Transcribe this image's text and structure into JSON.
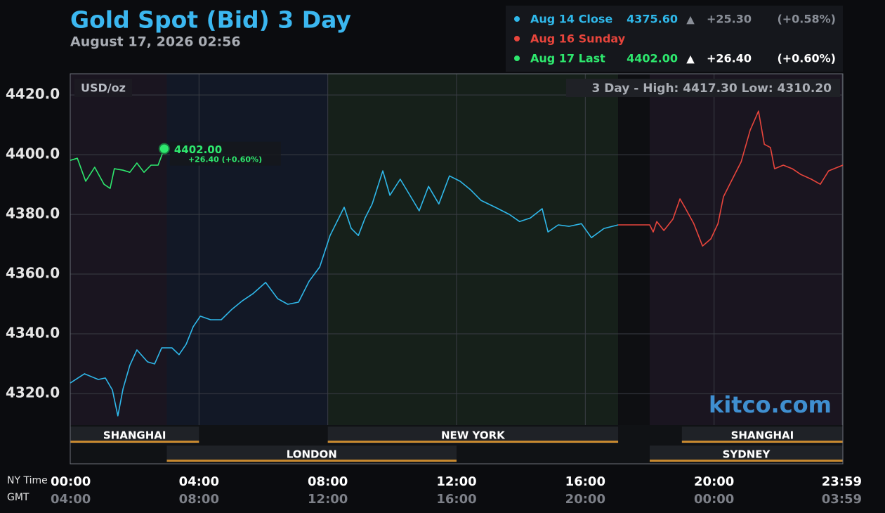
{
  "chart_data": {
    "type": "line",
    "title": "Gold Spot (Bid) 3 Day",
    "subtitle": "August 17, 2026 02:56",
    "unit_label": "USD/oz",
    "range_note": "3 Day - High: 4417.30  Low: 4310.20",
    "watermark": "kitco.com",
    "x_row_label": "NY Time",
    "x2_row_label": "GMT",
    "xlim": [
      0,
      24
    ],
    "xticks": [
      {
        "value": 0,
        "label": "00:00"
      },
      {
        "value": 4,
        "label": "04:00"
      },
      {
        "value": 8,
        "label": "08:00"
      },
      {
        "value": 12,
        "label": "12:00"
      },
      {
        "value": 16,
        "label": "16:00"
      },
      {
        "value": 20,
        "label": "20:00"
      },
      {
        "value": 23.98,
        "label": "23:59"
      }
    ],
    "x2tick_labels": [
      "04:00",
      "08:00",
      "12:00",
      "16:00",
      "20:00",
      "00:00",
      "03:59"
    ],
    "ylim": [
      4309.4,
      4427.1
    ],
    "yticks": [
      {
        "value": 4320,
        "label": "4320.0"
      },
      {
        "value": 4340,
        "label": "4340.0"
      },
      {
        "value": 4360,
        "label": "4360.0"
      },
      {
        "value": 4380,
        "label": "4380.0"
      },
      {
        "value": 4400,
        "label": "4400.0"
      },
      {
        "value": 4420,
        "label": "4420.0"
      }
    ],
    "grid": true,
    "bands": [
      {
        "start": 0,
        "end": 3,
        "color": "#1a1520"
      },
      {
        "start": 3,
        "end": 8,
        "color": "#121826"
      },
      {
        "start": 8,
        "end": 17.02,
        "color": "#16201a"
      },
      {
        "start": 17.02,
        "end": 18,
        "color": "#0e0f12"
      },
      {
        "start": 18,
        "end": 24,
        "color": "#1a1520"
      }
    ],
    "sessions_top": [
      {
        "name": "SHANGHAI",
        "start": 0,
        "end": 4
      },
      {
        "name": "NEW YORK",
        "start": 8,
        "end": 17.02
      },
      {
        "name": "SHANGHAI",
        "start": 19,
        "end": 24
      }
    ],
    "sessions_bottom": [
      {
        "name": "LONDON",
        "start": 3,
        "end": 12
      },
      {
        "name": "SYDNEY",
        "start": 18,
        "end": 24
      }
    ],
    "series": [
      {
        "name": "Aug 14 Close",
        "color": "#2fb8ea",
        "price_label": "4375.60",
        "arrow": "▲",
        "change": "+25.30",
        "pct": "(+0.58%)",
        "detail_color": "#8a8f98",
        "x": [
          0,
          0.44,
          0.87,
          1.09,
          1.31,
          1.48,
          1.64,
          1.85,
          2.07,
          2.4,
          2.62,
          2.84,
          3.16,
          3.38,
          3.6,
          3.82,
          4.04,
          4.36,
          4.69,
          5.02,
          5.35,
          5.67,
          6.07,
          6.44,
          6.76,
          7.09,
          7.42,
          7.75,
          8.07,
          8.51,
          8.73,
          8.95,
          9.16,
          9.38,
          9.71,
          9.93,
          10.25,
          10.58,
          10.84,
          11.13,
          11.45,
          11.78,
          12.11,
          12.44,
          12.76,
          13.2,
          13.64,
          13.96,
          14.29,
          14.66,
          14.84,
          15.16,
          15.49,
          15.88,
          16.19,
          16.58,
          17.02
        ],
        "values": [
          4323.5,
          4326.6,
          4324.7,
          4325.2,
          4321.2,
          4312.5,
          4321.6,
          4329.4,
          4334.6,
          4330.6,
          4329.9,
          4335.3,
          4335.3,
          4333.0,
          4336.5,
          4342.4,
          4345.9,
          4344.7,
          4344.7,
          4348.2,
          4351.1,
          4353.4,
          4357.2,
          4351.8,
          4349.9,
          4350.6,
          4357.6,
          4362.4,
          4372.9,
          4382.4,
          4375.3,
          4372.9,
          4378.8,
          4383.5,
          4394.6,
          4386.4,
          4391.8,
          4385.9,
          4381.2,
          4389.4,
          4383.5,
          4392.9,
          4391.1,
          4388.2,
          4384.7,
          4382.4,
          4380.0,
          4377.6,
          4378.8,
          4381.9,
          4374.1,
          4376.5,
          4376.0,
          4376.9,
          4372.2,
          4375.3,
          4376.5
        ]
      },
      {
        "name": "Aug 16 Sunday",
        "color": "#e8453c",
        "x": [
          17.02,
          18.0,
          18.11,
          18.22,
          18.44,
          18.72,
          18.94,
          19.09,
          19.37,
          19.64,
          19.9,
          20.12,
          20.29,
          20.51,
          20.84,
          21.12,
          21.38,
          21.56,
          21.75,
          21.88,
          22.15,
          22.43,
          22.69,
          23.02,
          23.3,
          23.56,
          24.0
        ],
        "values": [
          4376.5,
          4376.5,
          4374.1,
          4377.6,
          4374.6,
          4378.4,
          4385.2,
          4382.4,
          4376.9,
          4369.4,
          4371.8,
          4376.9,
          4385.9,
          4390.6,
          4397.6,
          4408.2,
          4414.6,
          4403.5,
          4402.4,
          4395.3,
          4396.5,
          4395.3,
          4393.4,
          4391.8,
          4390.1,
          4394.6,
          4396.5
        ]
      },
      {
        "name": "Aug 17 Last",
        "color": "#2ee86e",
        "price_label": "4402.00",
        "arrow": "▲",
        "change": "+26.40",
        "pct": "(+0.60%)",
        "detail_color": "#ffffff",
        "x": [
          0,
          0.22,
          0.48,
          0.76,
          1.05,
          1.24,
          1.37,
          1.64,
          1.85,
          2.07,
          2.29,
          2.51,
          2.73,
          2.92
        ],
        "values": [
          4398.1,
          4398.8,
          4391.1,
          4395.8,
          4390.1,
          4388.7,
          4395.3,
          4394.8,
          4394.1,
          4397.2,
          4394.1,
          4396.5,
          4396.5,
          4402.0
        ]
      }
    ],
    "last_label": {
      "price": "4402.00",
      "change": "+26.40 (+0.60%)"
    }
  }
}
